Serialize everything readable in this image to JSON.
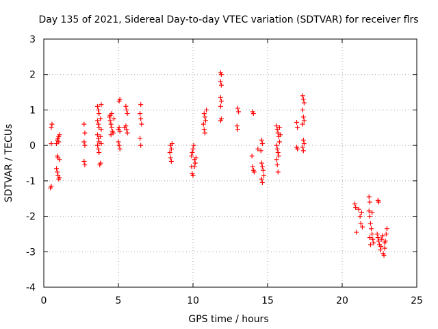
{
  "chart_data": {
    "type": "scatter",
    "title": "Day 135 of 2021, Sidereal Day-to-day VTEC variation (SDTVAR) for receiver flrs",
    "xlabel": "GPS time / hours",
    "ylabel": "SDTVAR / TECUs",
    "xlim": [
      0,
      25
    ],
    "ylim": [
      -4,
      3
    ],
    "xticks": [
      0,
      5,
      10,
      15,
      20,
      25
    ],
    "yticks": [
      -4,
      -3,
      -2,
      -1,
      0,
      1,
      2,
      3
    ],
    "grid": true,
    "marker": "+",
    "marker_color": "#ff0000",
    "series": [
      {
        "name": "flrs",
        "points": [
          [
            0.45,
            -1.2
          ],
          [
            0.5,
            -1.15
          ],
          [
            0.5,
            0.5
          ],
          [
            0.55,
            0.6
          ],
          [
            0.5,
            0.05
          ],
          [
            0.85,
            -0.65
          ],
          [
            0.9,
            -0.75
          ],
          [
            0.95,
            -0.85
          ],
          [
            1.0,
            -0.95
          ],
          [
            1.05,
            -0.9
          ],
          [
            0.9,
            -0.3
          ],
          [
            0.95,
            -0.35
          ],
          [
            1.05,
            -0.4
          ],
          [
            0.85,
            0.05
          ],
          [
            0.9,
            0.15
          ],
          [
            0.95,
            0.2
          ],
          [
            1.0,
            0.25
          ],
          [
            1.05,
            0.3
          ],
          [
            1.0,
            0.1
          ],
          [
            2.7,
            0.6
          ],
          [
            2.75,
            0.35
          ],
          [
            2.7,
            0.1
          ],
          [
            2.75,
            0.0
          ],
          [
            2.7,
            -0.45
          ],
          [
            2.75,
            -0.55
          ],
          [
            3.6,
            1.1
          ],
          [
            3.65,
            1.0
          ],
          [
            3.7,
            0.9
          ],
          [
            3.6,
            0.7
          ],
          [
            3.65,
            0.6
          ],
          [
            3.7,
            0.5
          ],
          [
            3.6,
            0.3
          ],
          [
            3.65,
            0.2
          ],
          [
            3.7,
            0.1
          ],
          [
            3.6,
            0.0
          ],
          [
            3.65,
            -0.1
          ],
          [
            3.7,
            -0.2
          ],
          [
            3.8,
            -0.5
          ],
          [
            3.75,
            -0.55
          ],
          [
            3.85,
            1.15
          ],
          [
            3.8,
            0.75
          ],
          [
            3.85,
            0.45
          ],
          [
            3.8,
            0.25
          ],
          [
            3.85,
            0.05
          ],
          [
            4.4,
            0.8
          ],
          [
            4.45,
            0.7
          ],
          [
            4.5,
            0.6
          ],
          [
            4.55,
            0.5
          ],
          [
            4.6,
            0.4
          ],
          [
            4.65,
            0.35
          ],
          [
            4.7,
            0.75
          ],
          [
            4.45,
            0.85
          ],
          [
            4.5,
            0.3
          ],
          [
            4.55,
            0.9
          ],
          [
            5.05,
            1.25
          ],
          [
            5.1,
            1.3
          ],
          [
            5.0,
            0.45
          ],
          [
            5.05,
            0.5
          ],
          [
            5.1,
            0.4
          ],
          [
            5.05,
            0.0
          ],
          [
            5.1,
            -0.1
          ],
          [
            5.0,
            0.1
          ],
          [
            5.5,
            1.1
          ],
          [
            5.55,
            1.0
          ],
          [
            5.6,
            0.9
          ],
          [
            5.5,
            0.55
          ],
          [
            5.55,
            0.45
          ],
          [
            5.6,
            0.35
          ],
          [
            5.4,
            0.5
          ],
          [
            6.5,
            1.15
          ],
          [
            6.45,
            0.9
          ],
          [
            6.5,
            0.75
          ],
          [
            6.55,
            0.6
          ],
          [
            6.45,
            0.2
          ],
          [
            6.5,
            0.0
          ],
          [
            8.45,
            -0.2
          ],
          [
            8.5,
            -0.35
          ],
          [
            8.55,
            -0.45
          ],
          [
            8.6,
            0.05
          ],
          [
            8.5,
            0.0
          ],
          [
            8.55,
            -0.1
          ],
          [
            9.9,
            -0.6
          ],
          [
            9.95,
            -0.8
          ],
          [
            10.0,
            -0.85
          ],
          [
            9.9,
            -0.3
          ],
          [
            9.95,
            -0.2
          ],
          [
            10.0,
            -0.1
          ],
          [
            10.05,
            0.0
          ],
          [
            10.1,
            -0.4
          ],
          [
            10.15,
            -0.5
          ],
          [
            10.2,
            -0.35
          ],
          [
            10.1,
            -0.6
          ],
          [
            10.75,
            0.9
          ],
          [
            10.8,
            0.8
          ],
          [
            10.7,
            0.6
          ],
          [
            10.75,
            0.45
          ],
          [
            10.8,
            0.35
          ],
          [
            10.85,
            0.7
          ],
          [
            10.9,
            1.0
          ],
          [
            11.85,
            2.05
          ],
          [
            11.9,
            2.0
          ],
          [
            11.85,
            1.8
          ],
          [
            11.9,
            1.7
          ],
          [
            11.85,
            1.35
          ],
          [
            11.9,
            1.25
          ],
          [
            11.85,
            1.1
          ],
          [
            11.9,
            0.75
          ],
          [
            11.85,
            0.7
          ],
          [
            13.0,
            1.05
          ],
          [
            13.05,
            0.95
          ],
          [
            12.95,
            0.55
          ],
          [
            13.0,
            0.45
          ],
          [
            14.0,
            0.95
          ],
          [
            14.05,
            0.9
          ],
          [
            13.95,
            -0.3
          ],
          [
            14.0,
            -0.6
          ],
          [
            14.05,
            -0.7
          ],
          [
            14.1,
            -0.75
          ],
          [
            14.35,
            -0.1
          ],
          [
            14.6,
            0.15
          ],
          [
            14.65,
            0.05
          ],
          [
            14.55,
            -0.15
          ],
          [
            14.6,
            -0.5
          ],
          [
            14.65,
            -0.6
          ],
          [
            14.7,
            -0.7
          ],
          [
            14.75,
            -0.85
          ],
          [
            14.6,
            -0.95
          ],
          [
            14.65,
            -1.05
          ],
          [
            15.6,
            0.55
          ],
          [
            15.65,
            0.45
          ],
          [
            15.7,
            0.35
          ],
          [
            15.75,
            0.25
          ],
          [
            15.8,
            0.1
          ],
          [
            15.6,
            0.0
          ],
          [
            15.65,
            -0.1
          ],
          [
            15.7,
            -0.2
          ],
          [
            15.6,
            -0.4
          ],
          [
            15.65,
            -0.55
          ],
          [
            15.7,
            -0.75
          ],
          [
            15.8,
            0.5
          ],
          [
            15.85,
            0.3
          ],
          [
            15.75,
            -0.3
          ],
          [
            16.95,
            0.65
          ],
          [
            17.0,
            0.5
          ],
          [
            16.95,
            -0.05
          ],
          [
            17.0,
            -0.1
          ],
          [
            17.35,
            1.4
          ],
          [
            17.4,
            1.3
          ],
          [
            17.45,
            1.2
          ],
          [
            17.35,
            1.0
          ],
          [
            17.4,
            0.8
          ],
          [
            17.45,
            0.7
          ],
          [
            17.35,
            0.6
          ],
          [
            17.4,
            0.15
          ],
          [
            17.45,
            0.05
          ],
          [
            17.35,
            -0.05
          ],
          [
            17.4,
            -0.15
          ],
          [
            20.85,
            -1.65
          ],
          [
            20.9,
            -1.75
          ],
          [
            20.95,
            -2.45
          ],
          [
            21.1,
            -1.8
          ],
          [
            21.2,
            -2.0
          ],
          [
            21.25,
            -2.2
          ],
          [
            21.3,
            -1.9
          ],
          [
            21.35,
            -2.3
          ],
          [
            21.8,
            -1.45
          ],
          [
            21.85,
            -1.6
          ],
          [
            21.8,
            -1.85
          ],
          [
            21.85,
            -2.0
          ],
          [
            21.9,
            -2.2
          ],
          [
            21.95,
            -2.35
          ],
          [
            22.0,
            -2.5
          ],
          [
            22.05,
            -2.65
          ],
          [
            22.1,
            -2.75
          ],
          [
            21.9,
            -2.8
          ],
          [
            21.85,
            -2.6
          ],
          [
            22.0,
            -1.9
          ],
          [
            22.4,
            -1.55
          ],
          [
            22.45,
            -1.6
          ],
          [
            22.35,
            -2.5
          ],
          [
            22.4,
            -2.6
          ],
          [
            22.45,
            -2.7
          ],
          [
            22.5,
            -2.8
          ],
          [
            22.55,
            -2.95
          ],
          [
            22.6,
            -2.85
          ],
          [
            22.65,
            -2.65
          ],
          [
            22.7,
            -2.55
          ],
          [
            22.75,
            -3.05
          ],
          [
            22.8,
            -3.1
          ],
          [
            22.85,
            -2.9
          ],
          [
            22.9,
            -2.7
          ],
          [
            22.95,
            -2.5
          ],
          [
            23.0,
            -2.35
          ],
          [
            22.85,
            -2.75
          ]
        ]
      }
    ]
  }
}
